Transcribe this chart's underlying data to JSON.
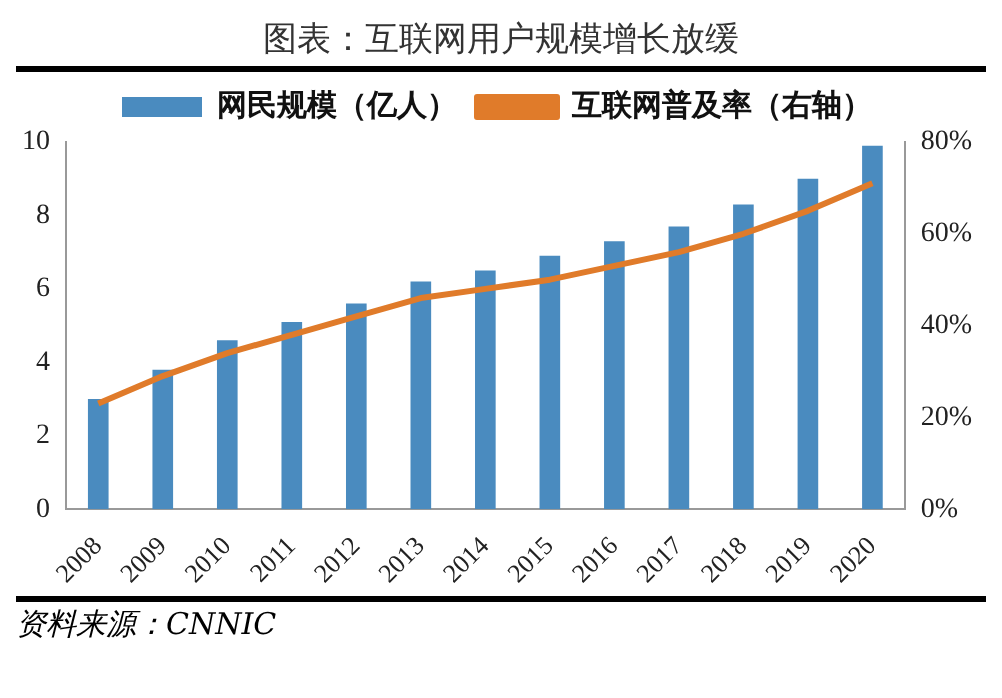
{
  "chart_data": {
    "type": "bar",
    "title": "图表：互联网用户规模增长放缓",
    "categories": [
      "2008",
      "2009",
      "2010",
      "2011",
      "2012",
      "2013",
      "2014",
      "2015",
      "2016",
      "2017",
      "2018",
      "2019",
      "2020"
    ],
    "series": [
      {
        "name": "网民规模（亿人）",
        "color": "#4a8bbf",
        "values": [
          3.0,
          3.8,
          4.6,
          5.1,
          5.6,
          6.2,
          6.5,
          6.9,
          7.3,
          7.7,
          8.3,
          9.0,
          9.9
        ]
      },
      {
        "name": "互联网普及率（右轴）",
        "type": "line",
        "axis": "y2",
        "color": "#e07b2a",
        "values": [
          23,
          29,
          34,
          38,
          42,
          46,
          48,
          50,
          53,
          56,
          60,
          65,
          71
        ]
      }
    ],
    "ylim": [
      0,
      10
    ],
    "yticks": [
      0,
      2,
      4,
      6,
      8,
      10
    ],
    "y2lim": [
      0,
      80
    ],
    "y2ticks": [
      {
        "value": 0,
        "label": "0%"
      },
      {
        "value": 20,
        "label": "20%"
      },
      {
        "value": 40,
        "label": "40%"
      },
      {
        "value": 60,
        "label": "60%"
      },
      {
        "value": 80,
        "label": "80%"
      }
    ],
    "legend": "top",
    "grid": false,
    "marker": "none",
    "annotations": [
      "资料来源：CNNIC"
    ]
  }
}
